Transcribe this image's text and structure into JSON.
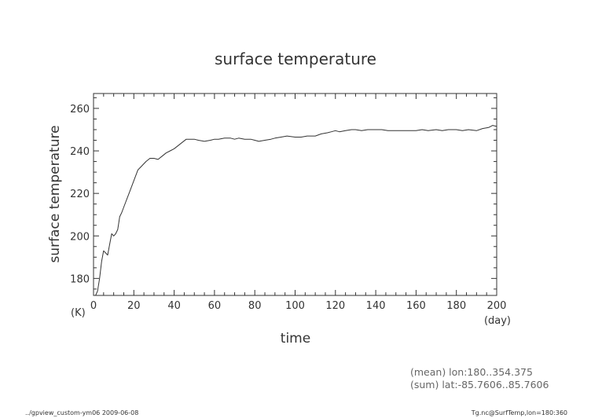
{
  "footer": {
    "left": "../gpview_custom-ym06  2009-06-08",
    "right": "Tg.nc@SurfTemp,lon=180:360"
  },
  "notes": {
    "mean": "(mean) lon:180..354.375",
    "sum": "(sum) lat:-85.7606..85.7606"
  },
  "chart_data": {
    "type": "line",
    "title": "surface temperature",
    "xlabel": "time",
    "ylabel": "surface temperature",
    "xunit": "(day)",
    "yunit": "(K)",
    "xlim": [
      0,
      200
    ],
    "ylim": [
      172,
      267
    ],
    "xticks": [
      0,
      20,
      40,
      60,
      80,
      100,
      120,
      140,
      160,
      180,
      200
    ],
    "yticks": [
      180,
      200,
      220,
      240,
      260
    ],
    "grid": false,
    "legend": "none",
    "color": "#333333",
    "series": [
      {
        "x": [
          0,
          1,
          2,
          3,
          4,
          5,
          6,
          7,
          8,
          9,
          10,
          11,
          12,
          13,
          14,
          16,
          18,
          20,
          22,
          24,
          26,
          28,
          30,
          32,
          34,
          36,
          38,
          40,
          42,
          44,
          46,
          48,
          50,
          52,
          55,
          58,
          60,
          62,
          65,
          68,
          70,
          72,
          75,
          78,
          80,
          82,
          85,
          88,
          90,
          93,
          96,
          100,
          103,
          106,
          110,
          113,
          116,
          118,
          120,
          122,
          125,
          128,
          130,
          133,
          136,
          140,
          143,
          146,
          150,
          153,
          156,
          160,
          163,
          166,
          170,
          173,
          176,
          180,
          183,
          186,
          190,
          193,
          196,
          198,
          200
        ],
        "values": [
          172,
          172,
          174,
          180,
          188,
          193,
          192,
          191,
          196,
          201,
          200,
          201,
          203,
          209,
          211,
          216,
          221,
          226,
          231,
          233,
          235,
          236.5,
          236.5,
          236,
          237.5,
          239,
          240,
          241,
          242.5,
          244,
          245.5,
          245.5,
          245.5,
          245,
          244.5,
          245,
          245.5,
          245.5,
          246,
          246,
          245.5,
          246,
          245.5,
          245.5,
          245,
          244.5,
          245,
          245.5,
          246,
          246.5,
          247,
          246.5,
          246.5,
          247,
          247,
          248,
          248.5,
          249,
          249.5,
          249,
          249.5,
          250,
          250,
          249.5,
          250,
          250,
          250,
          249.5,
          249.5,
          249.5,
          249.5,
          249.5,
          250,
          249.5,
          250,
          249.5,
          250,
          250,
          249.5,
          250,
          249.5,
          250.5,
          251,
          252,
          251.5
        ]
      }
    ]
  }
}
